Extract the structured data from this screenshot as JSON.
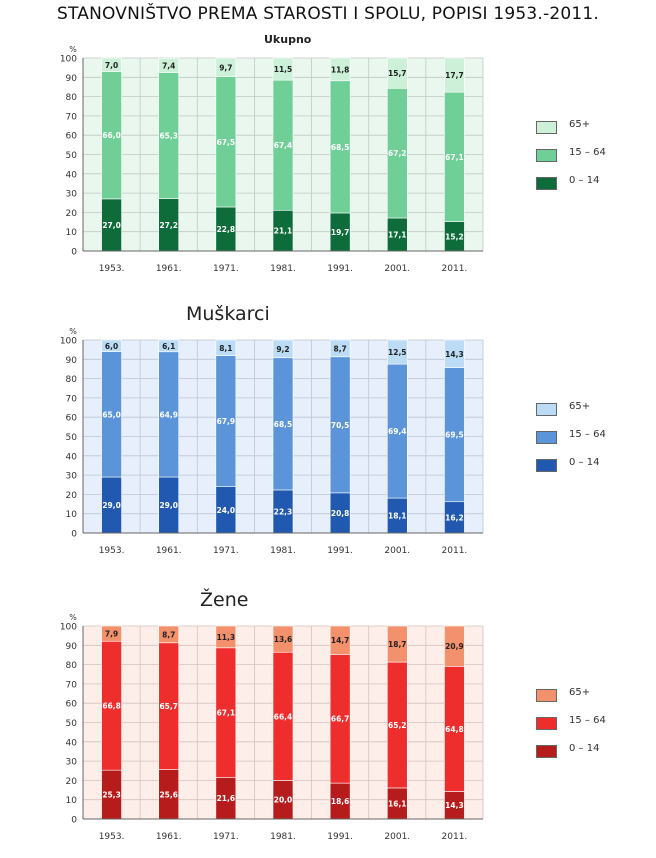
{
  "page_title": "STANOVNIŠTVO PREMA STAROSTI I SPOLU, POPISI 1953.-2011.",
  "chart_data": [
    {
      "type": "bar",
      "stacked": true,
      "title": "Ukupno",
      "ylabel": "%",
      "ylim": [
        0,
        100
      ],
      "yticks": [
        0,
        10,
        20,
        30,
        40,
        50,
        60,
        70,
        80,
        90,
        100
      ],
      "grid": true,
      "legend_position": "right",
      "categories": [
        "1953.",
        "1961.",
        "1971.",
        "1981.",
        "1991.",
        "2001.",
        "2011."
      ],
      "series": [
        {
          "name": "0 – 14",
          "color": "#0e6b3a",
          "values": [
            27.0,
            27.2,
            22.8,
            21.1,
            19.7,
            17.1,
            15.2
          ],
          "labels": [
            "27,0",
            "27,2",
            "22,8",
            "21,1",
            "19,7",
            "17,1",
            "15,2"
          ]
        },
        {
          "name": "15 – 64",
          "color": "#6fcf97",
          "values": [
            66.0,
            65.3,
            67.5,
            67.4,
            68.5,
            67.2,
            67.1
          ],
          "labels": [
            "66,0",
            "65,3",
            "67,5",
            "67,4",
            "68,5",
            "67,2",
            "67,1"
          ]
        },
        {
          "name": "65+",
          "color": "#ccf0d8",
          "values": [
            7.0,
            7.4,
            9.7,
            11.5,
            11.8,
            15.7,
            17.7
          ],
          "labels": [
            "7,0",
            "7,4",
            "9,7",
            "11,5",
            "11,8",
            "15,7",
            "17,7"
          ]
        }
      ],
      "colors": {
        "plot_bg": "#e9f7ee",
        "grid": "#bfc9c2"
      }
    },
    {
      "type": "bar",
      "stacked": true,
      "title": "Muškarci",
      "ylabel": "%",
      "ylim": [
        0,
        100
      ],
      "yticks": [
        0,
        10,
        20,
        30,
        40,
        50,
        60,
        70,
        80,
        90,
        100
      ],
      "grid": true,
      "legend_position": "right",
      "categories": [
        "1953.",
        "1961.",
        "1971.",
        "1981.",
        "1991.",
        "2001.",
        "2011."
      ],
      "series": [
        {
          "name": "0 – 14",
          "color": "#2158b0",
          "values": [
            29.0,
            29.0,
            24.0,
            22.3,
            20.8,
            18.1,
            16.2
          ],
          "labels": [
            "29,0",
            "29,0",
            "24,0",
            "22,3",
            "20,8",
            "18,1",
            "16,2"
          ]
        },
        {
          "name": "15 – 64",
          "color": "#5b94d8",
          "values": [
            65.0,
            64.9,
            67.9,
            68.5,
            70.5,
            69.4,
            69.5
          ],
          "labels": [
            "65,0",
            "64,9",
            "67,9",
            "68,5",
            "70,5",
            "69,4",
            "69,5"
          ]
        },
        {
          "name": "65+",
          "color": "#bcdcf6",
          "values": [
            6.0,
            6.1,
            8.1,
            9.2,
            8.7,
            12.5,
            14.3
          ],
          "labels": [
            "6,0",
            "6,1",
            "8,1",
            "9,2",
            "8,7",
            "12,5",
            "14,3"
          ]
        }
      ],
      "colors": {
        "plot_bg": "#e6effb",
        "grid": "#bcc6d4"
      }
    },
    {
      "type": "bar",
      "stacked": true,
      "title": "Žene",
      "ylabel": "%",
      "ylim": [
        0,
        100
      ],
      "yticks": [
        0,
        10,
        20,
        30,
        40,
        50,
        60,
        70,
        80,
        90,
        100
      ],
      "grid": true,
      "legend_position": "right",
      "categories": [
        "1953.",
        "1961.",
        "1971.",
        "1981.",
        "1991.",
        "2001.",
        "2011."
      ],
      "series": [
        {
          "name": "0 – 14",
          "color": "#b71c1c",
          "values": [
            25.3,
            25.6,
            21.6,
            20.0,
            18.6,
            16.1,
            14.3
          ],
          "labels": [
            "25,3",
            "25,6",
            "21,6",
            "20,0",
            "18,6",
            "16,1",
            "14,3"
          ]
        },
        {
          "name": "15 – 64",
          "color": "#ee2d2d",
          "values": [
            66.8,
            65.7,
            67.1,
            66.4,
            66.7,
            65.2,
            64.8
          ],
          "labels": [
            "66,8",
            "65,7",
            "67,1",
            "66,4",
            "66,7",
            "65,2",
            "64,8"
          ]
        },
        {
          "name": "65+",
          "color": "#f4916d",
          "values": [
            7.9,
            8.7,
            11.3,
            13.6,
            14.7,
            18.7,
            20.9
          ],
          "labels": [
            "7,9",
            "8,7",
            "11,3",
            "13,6",
            "14,7",
            "18,7",
            "20,9"
          ]
        }
      ],
      "colors": {
        "plot_bg": "#fdeeea",
        "grid": "#d6c2bd"
      }
    }
  ]
}
